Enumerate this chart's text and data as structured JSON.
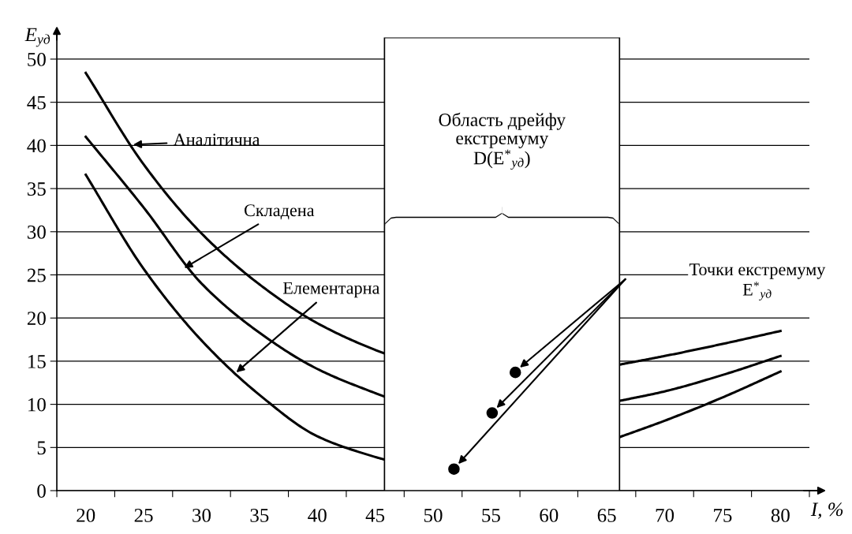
{
  "chart_data": {
    "type": "line",
    "xlabel": "I, %",
    "ylabel": "E$_{уд}$",
    "xlim": [
      17.5,
      82.5
    ],
    "ylim": [
      0,
      52.5
    ],
    "xticks": [
      {
        "value": 17.5,
        "label": null
      },
      {
        "value": 20,
        "label": "20"
      },
      {
        "value": 22.5,
        "label": null
      },
      {
        "value": 25,
        "label": "25"
      },
      {
        "value": 27.5,
        "label": null
      },
      {
        "value": 30,
        "label": "30"
      },
      {
        "value": 32.5,
        "label": null
      },
      {
        "value": 35,
        "label": "35"
      },
      {
        "value": 37.5,
        "label": null
      },
      {
        "value": 40,
        "label": "40"
      },
      {
        "value": 42.5,
        "label": null
      },
      {
        "value": 45,
        "label": "45"
      },
      {
        "value": 47.5,
        "label": null
      },
      {
        "value": 50,
        "label": "50"
      },
      {
        "value": 52.5,
        "label": null
      },
      {
        "value": 55,
        "label": "55"
      },
      {
        "value": 57.5,
        "label": null
      },
      {
        "value": 60,
        "label": "60"
      },
      {
        "value": 62.5,
        "label": null
      },
      {
        "value": 65,
        "label": "65"
      },
      {
        "value": 67.5,
        "label": null
      },
      {
        "value": 70,
        "label": "70"
      },
      {
        "value": 72.5,
        "label": null
      },
      {
        "value": 75,
        "label": "75"
      },
      {
        "value": 77.5,
        "label": null
      },
      {
        "value": 80,
        "label": "80"
      },
      {
        "value": 82.5,
        "label": null
      }
    ],
    "yticks": [
      0,
      5,
      10,
      15,
      20,
      25,
      30,
      35,
      40,
      45,
      50
    ],
    "grid": "y",
    "marker": "none",
    "line_style": "solid",
    "series": [
      {
        "color": "#000000",
        "x": [
          20,
          25,
          30,
          35,
          40,
          45,
          45.8,
          55,
          66.1,
          70,
          75,
          80
        ],
        "values": [
          48.4,
          37.8,
          29.8,
          23.9,
          19.4,
          16.3,
          15.9,
          null,
          14.6,
          15.6,
          17.0,
          18.5
        ]
      },
      {
        "color": "#000000",
        "x": [
          20,
          25,
          30,
          35,
          40,
          45,
          45.8,
          55,
          66.1,
          70,
          75,
          80
        ],
        "values": [
          41.0,
          32.8,
          24.0,
          18.3,
          14.1,
          11.3,
          10.9,
          null,
          10.4,
          11.5,
          13.4,
          15.6
        ]
      },
      {
        "color": "#000000",
        "x": [
          20,
          25,
          30,
          35,
          40,
          45,
          45.8,
          55,
          66.1,
          70,
          75,
          80
        ],
        "values": [
          36.6,
          25.7,
          17.4,
          11.1,
          6.3,
          3.9,
          3.6,
          null,
          6.2,
          8.1,
          10.8,
          13.8
        ]
      },
      {
        "type": "scatter",
        "color": "#000000",
        "marker": "circle",
        "x": [
          57.1,
          55.1,
          51.8
        ],
        "values": [
          13.7,
          9.0,
          2.5
        ]
      }
    ],
    "annotations": [
      {
        "text": "Аналітична",
        "x": 24.1,
        "y": 40.1
      },
      {
        "text": "Складена",
        "x": 28.5,
        "y": 25.8
      },
      {
        "text": "Елементарна",
        "x": 33.0,
        "y": 13.7
      },
      "Точки екстремуму\nE$^{*}$$_{уд}$"
    ],
    "bands": [
      {
        "axis": "x",
        "from": 45.8,
        "to": 66.1,
        "label": "Область дрейфу\nекстремуму\nD(E$^{*}$$_{уд}$)",
        "color": "#ffffff"
      }
    ]
  }
}
